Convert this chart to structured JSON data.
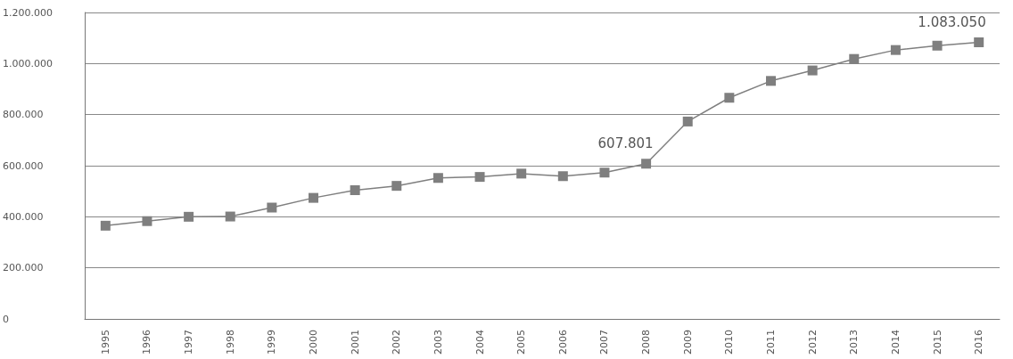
{
  "chart_data": {
    "type": "line",
    "categories": [
      "1995",
      "1996",
      "1997",
      "1998",
      "1999",
      "2000",
      "2001",
      "2002",
      "2003",
      "2004",
      "2005",
      "2006",
      "2007",
      "2008",
      "2009",
      "2010",
      "2011",
      "2012",
      "2013",
      "2014",
      "2015",
      "2016"
    ],
    "series": [
      {
        "color": "#7f7f7f",
        "values": [
          365000,
          383000,
          400000,
          401000,
          436000,
          474000,
          504000,
          521000,
          552000,
          556000,
          569000,
          559000,
          573000,
          607801,
          773000,
          866000,
          932000,
          973000,
          1018000,
          1053000,
          1070000,
          1083050
        ],
        "value_labels": [
          null,
          null,
          null,
          null,
          null,
          null,
          null,
          null,
          null,
          null,
          null,
          null,
          null,
          "607.801",
          null,
          null,
          null,
          null,
          null,
          null,
          null,
          "1.083.050"
        ]
      }
    ],
    "ylim": [
      0,
      1200000
    ],
    "yticks": [
      {
        "value": 0,
        "label": "0"
      },
      {
        "value": 200000,
        "label": "200.000"
      },
      {
        "value": 400000,
        "label": "400.000"
      },
      {
        "value": 600000,
        "label": "600.000"
      },
      {
        "value": 800000,
        "label": "800.000"
      },
      {
        "value": 1000000,
        "label": "1.000.000"
      },
      {
        "value": 1200000,
        "label": "1.200.000"
      }
    ],
    "grid": "y",
    "marker": "square",
    "line_style": "solid",
    "legend": false
  }
}
